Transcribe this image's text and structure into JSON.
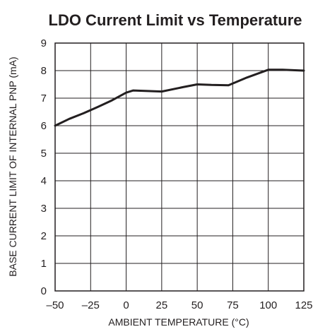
{
  "chart_data": {
    "type": "line",
    "title": "LDO Current Limit vs Temperature",
    "xlabel": "AMBIENT TEMPERATURE (°C)",
    "ylabel": "BASE CURRENT LIMIT OF INTERNAL PNP (mA)",
    "xlim": [
      -50,
      125
    ],
    "ylim": [
      0,
      9
    ],
    "x_ticks": [
      "–50",
      "–25",
      "0",
      "25",
      "50",
      "75",
      "100",
      "125"
    ],
    "y_ticks": [
      "0",
      "1",
      "2",
      "3",
      "4",
      "5",
      "6",
      "7",
      "8",
      "9"
    ],
    "grid": true,
    "legend": "none",
    "series": [
      {
        "x": [
          -50,
          -40,
          -30,
          -20,
          -10,
          0,
          5,
          10,
          25,
          40,
          50,
          60,
          72,
          85,
          100,
          110,
          125
        ],
        "y": [
          6.0,
          6.25,
          6.45,
          6.68,
          6.92,
          7.2,
          7.28,
          7.27,
          7.24,
          7.4,
          7.5,
          7.48,
          7.47,
          7.75,
          8.03,
          8.03,
          8.0
        ]
      }
    ],
    "colors": {
      "line": "#231f20",
      "grid": "#231f20",
      "frame": "#231f20"
    }
  }
}
